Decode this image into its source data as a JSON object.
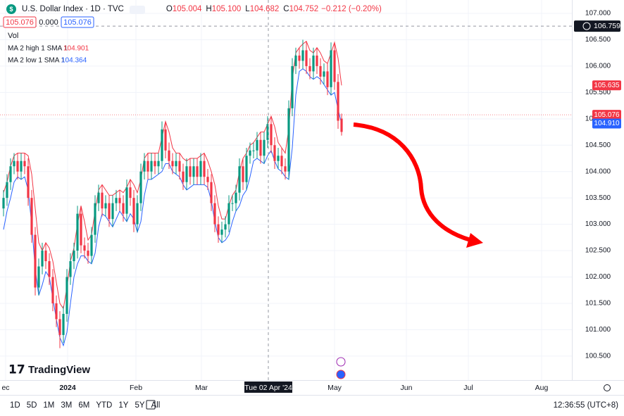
{
  "header": {
    "symbol": "U.S. Dollar Index · 1D · TVC",
    "ohlc": [
      [
        "O",
        "105.004"
      ],
      [
        "H",
        "105.100"
      ],
      [
        "L",
        "104.682"
      ],
      [
        "C",
        "104.752"
      ]
    ],
    "change": "−0.212 (−0.20%)",
    "sell": "105.076",
    "spread": "0.000",
    "buy": "105.076",
    "vol": "Vol",
    "brand": "TradingView"
  },
  "toolbar": {
    "ranges": [
      "1D",
      "5D",
      "1M",
      "3M",
      "6M",
      "YTD",
      "1Y",
      "5Y",
      "All"
    ],
    "clock": "12:36:55 (UTC+8)"
  },
  "chart_data": {
    "type": "candlestick",
    "title": "U.S. Dollar Index",
    "open": [
      103.3,
      103.5,
      103.8,
      104.1,
      104.2,
      104.0,
      104.2,
      104.1,
      103.5,
      102.8,
      101.8,
      102.2,
      102.5,
      102.3,
      102.0,
      101.5,
      101.2,
      100.9,
      101.3,
      102.0,
      102.3,
      102.5,
      103.2,
      102.6,
      102.5,
      102.4,
      102.8,
      103.4,
      103.6,
      103.3,
      103.4,
      103.1,
      103.4,
      103.5,
      103.4,
      103.2,
      103.7,
      103.5,
      103.0,
      103.4,
      104.0,
      104.2,
      104.0,
      104.2,
      104.1,
      104.2,
      104.8,
      104.4,
      104.2,
      104.1,
      104.2,
      104.0,
      103.8,
      104.1,
      103.9,
      104.1,
      103.9,
      104.2,
      103.9,
      103.8,
      103.4,
      103.0,
      102.8,
      102.9,
      103.0,
      103.4,
      103.4,
      103.6,
      104.1,
      103.8,
      104.3,
      104.4,
      104.4,
      104.6,
      104.3,
      104.6,
      104.9,
      104.5,
      104.2,
      104.3,
      104.1,
      104.0,
      105.2,
      106.0,
      106.2,
      106.1,
      106.3,
      106.0,
      105.9,
      106.2,
      106.0,
      105.8,
      105.9,
      105.6,
      106.3,
      105.7,
      105.004
    ],
    "high": [
      103.65,
      103.95,
      104.25,
      104.35,
      104.35,
      104.35,
      104.35,
      104.25,
      103.65,
      102.95,
      102.35,
      102.65,
      102.65,
      102.45,
      102.15,
      101.65,
      101.35,
      101.45,
      102.15,
      102.45,
      102.65,
      103.35,
      103.35,
      102.75,
      102.65,
      102.95,
      103.55,
      103.75,
      103.75,
      103.55,
      103.55,
      103.55,
      103.65,
      103.65,
      103.55,
      103.85,
      103.85,
      103.65,
      103.55,
      104.15,
      104.35,
      104.35,
      104.35,
      104.35,
      104.35,
      104.95,
      104.95,
      104.55,
      104.35,
      104.35,
      104.35,
      104.15,
      104.25,
      104.25,
      104.25,
      104.25,
      104.35,
      104.35,
      104.05,
      103.95,
      103.55,
      103.15,
      103.05,
      103.15,
      103.55,
      103.55,
      103.75,
      104.25,
      104.25,
      104.45,
      104.55,
      104.55,
      104.75,
      104.75,
      104.75,
      105.05,
      105.05,
      104.65,
      104.45,
      104.45,
      104.25,
      105.35,
      106.15,
      106.35,
      106.35,
      106.5,
      106.45,
      106.15,
      106.35,
      106.35,
      106.15,
      106.05,
      106.05,
      106.45,
      106.45,
      105.85,
      105.1
    ],
    "low": [
      103.15,
      103.35,
      103.65,
      103.95,
      103.85,
      103.85,
      103.95,
      103.35,
      102.65,
      101.65,
      101.65,
      102.05,
      102.15,
      101.85,
      101.35,
      101.05,
      100.65,
      100.75,
      101.15,
      101.85,
      102.15,
      102.35,
      102.45,
      102.35,
      102.25,
      102.25,
      102.65,
      103.25,
      103.15,
      103.15,
      102.95,
      102.95,
      103.25,
      103.25,
      103.05,
      103.05,
      103.35,
      102.85,
      102.85,
      103.25,
      103.85,
      103.85,
      103.85,
      103.95,
      103.95,
      104.05,
      104.25,
      104.05,
      103.95,
      103.95,
      103.85,
      103.65,
      103.65,
      103.75,
      103.75,
      103.75,
      103.75,
      103.75,
      103.65,
      103.25,
      102.85,
      102.65,
      102.65,
      102.75,
      102.85,
      103.25,
      103.25,
      103.45,
      103.65,
      103.65,
      104.15,
      104.25,
      104.25,
      104.15,
      104.15,
      104.45,
      104.35,
      104.05,
      104.05,
      103.95,
      103.85,
      103.85,
      105.05,
      105.85,
      105.95,
      105.95,
      105.85,
      105.75,
      105.75,
      105.85,
      105.65,
      105.65,
      105.45,
      105.45,
      105.55,
      104.81,
      104.682
    ],
    "close": [
      103.5,
      103.8,
      104.1,
      104.2,
      104.0,
      104.2,
      104.1,
      103.5,
      102.8,
      101.8,
      102.2,
      102.5,
      102.3,
      102.0,
      101.5,
      101.2,
      100.9,
      101.3,
      102.0,
      102.3,
      102.5,
      103.2,
      102.6,
      102.5,
      102.4,
      102.8,
      103.4,
      103.6,
      103.3,
      103.4,
      103.1,
      103.4,
      103.5,
      103.4,
      103.2,
      103.7,
      103.5,
      103.0,
      103.4,
      104.0,
      104.2,
      104.0,
      104.2,
      104.1,
      104.2,
      104.8,
      104.4,
      104.2,
      104.1,
      104.2,
      104.0,
      103.8,
      104.1,
      103.9,
      104.1,
      103.9,
      104.2,
      103.9,
      103.8,
      103.4,
      103.0,
      102.8,
      102.9,
      103.0,
      103.4,
      103.4,
      103.6,
      104.1,
      103.8,
      104.3,
      104.4,
      104.4,
      104.6,
      104.3,
      104.6,
      104.9,
      104.5,
      104.2,
      104.3,
      104.1,
      104.0,
      105.2,
      106.0,
      106.2,
      106.1,
      106.3,
      106.0,
      105.9,
      106.2,
      106.0,
      105.8,
      105.9,
      105.6,
      106.3,
      105.7,
      104.964,
      104.752
    ],
    "up_color": "#089981",
    "down_color": "#f23645",
    "series": [
      {
        "name": "MA 2 high 1 SMA 1",
        "legend_value": "104.901",
        "color": "#f23645",
        "values": [
          103.6,
          103.8,
          104.1,
          104.3,
          104.35,
          104.35,
          104.35,
          104.3,
          103.95,
          103.3,
          102.65,
          102.5,
          102.65,
          102.55,
          102.3,
          101.9,
          101.5,
          101.4,
          101.8,
          102.3,
          102.55,
          103.0,
          103.35,
          103.05,
          102.7,
          102.8,
          103.25,
          103.65,
          103.75,
          103.65,
          103.55,
          103.55,
          103.6,
          103.65,
          103.6,
          103.7,
          103.85,
          103.75,
          103.6,
          103.85,
          104.25,
          104.35,
          104.35,
          104.35,
          104.35,
          104.65,
          104.95,
          104.75,
          104.45,
          104.35,
          104.35,
          104.25,
          104.2,
          104.25,
          104.25,
          104.25,
          104.3,
          104.35,
          104.2,
          104.0,
          103.75,
          103.35,
          103.1,
          103.1,
          103.35,
          103.55,
          103.65,
          104.0,
          104.25,
          104.35,
          104.5,
          104.55,
          104.65,
          104.75,
          104.75,
          104.9,
          105.05,
          104.85,
          104.55,
          104.45,
          104.35,
          104.8,
          105.75,
          106.25,
          106.35,
          106.42,
          106.47,
          106.3,
          106.25,
          106.35,
          106.25,
          106.1,
          106.05,
          106.25,
          106.45,
          106.15,
          105.635
        ]
      },
      {
        "name": "MA 2 low 1 SMA 1",
        "legend_value": "104.364",
        "color": "#2962ff",
        "values": [
          102.9,
          103.25,
          103.5,
          103.8,
          103.9,
          103.85,
          103.9,
          103.65,
          103.0,
          102.15,
          101.65,
          101.85,
          102.1,
          102.0,
          101.6,
          101.2,
          100.85,
          100.7,
          100.95,
          101.5,
          102.0,
          102.25,
          102.4,
          102.4,
          102.3,
          102.25,
          102.45,
          102.95,
          103.2,
          103.15,
          103.05,
          102.95,
          103.1,
          103.25,
          103.15,
          103.05,
          103.2,
          103.1,
          102.85,
          103.05,
          103.55,
          103.85,
          103.85,
          103.9,
          103.95,
          104.0,
          104.15,
          104.15,
          104.0,
          103.95,
          103.9,
          103.75,
          103.65,
          103.7,
          103.75,
          103.75,
          103.75,
          103.75,
          103.7,
          103.45,
          103.05,
          102.75,
          102.65,
          102.7,
          102.8,
          103.05,
          103.25,
          103.35,
          103.55,
          103.65,
          103.9,
          104.2,
          104.25,
          104.2,
          104.15,
          104.3,
          104.4,
          104.2,
          104.05,
          104.0,
          103.9,
          103.85,
          104.45,
          105.45,
          105.9,
          105.95,
          105.9,
          105.8,
          105.75,
          105.8,
          105.75,
          105.65,
          105.55,
          105.45,
          105.5,
          105.18,
          104.91
        ]
      }
    ],
    "ylim": [
      100.044,
      107.254
    ],
    "yticks": [
      {
        "value": 100.5,
        "label": "100.500"
      },
      {
        "value": 101,
        "label": "101.000"
      },
      {
        "value": 101.5,
        "label": "101.500"
      },
      {
        "value": 102,
        "label": "102.000"
      },
      {
        "value": 102.5,
        "label": "102.500"
      },
      {
        "value": 103,
        "label": "103.000"
      },
      {
        "value": 103.5,
        "label": "103.500"
      },
      {
        "value": 104,
        "label": "104.000"
      },
      {
        "value": 104.5,
        "label": "104.500"
      },
      {
        "value": 105,
        "label": "105.000"
      },
      {
        "value": 105.5,
        "label": "105.500"
      },
      {
        "value": 106,
        "label": "106.000"
      },
      {
        "value": 106.5,
        "label": "106.500"
      },
      {
        "value": 107,
        "label": "107.000"
      }
    ],
    "xlim": [
      -1,
      161.4
    ],
    "xticks": [
      {
        "value": 0.6,
        "label": "ec"
      },
      {
        "value": 18.2,
        "label": "2024"
      },
      {
        "value": 37.6,
        "label": "Feb"
      },
      {
        "value": 56.2,
        "label": "Mar"
      },
      {
        "value": 94,
        "label": "May"
      },
      {
        "value": 114.4,
        "label": "Jun"
      },
      {
        "value": 132,
        "label": "Jul"
      },
      {
        "value": 152.8,
        "label": "Aug"
      }
    ],
    "crosshair": {
      "x": {
        "value": 75.2,
        "label": "Tue 02 Apr '24"
      },
      "y": {
        "value": 106.759,
        "label": "106.759"
      }
    },
    "price_labels": [
      {
        "value": 105.635,
        "label": "105.635",
        "color": "#f23645"
      },
      {
        "value": 105.076,
        "label": "105.076",
        "color": "#f23645"
      },
      {
        "value": 104.91,
        "label": "104.910",
        "color": "#2962ff"
      }
    ],
    "last_price": 105.076
  }
}
